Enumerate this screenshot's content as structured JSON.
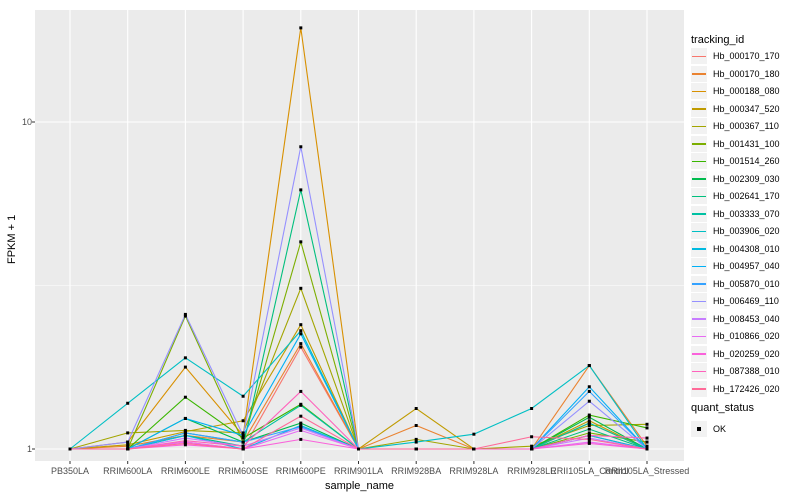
{
  "figure": {
    "background": "#FFFFFF",
    "panel_background": "#EBEBEB",
    "grid_color": "#FFFFFF",
    "tick_color": "#333333",
    "tick_label_color": "#4D4D4D",
    "axis_title_color": "#000000"
  },
  "axes": {
    "x_title": "sample_name",
    "y_title": "FPKM + 1",
    "y_ticks": [
      {
        "label": "10",
        "value": 10
      },
      {
        "label": "1",
        "value": 1
      }
    ]
  },
  "legend": {
    "tracking_title": "tracking_id",
    "quant_title": "quant_status",
    "quant_ok_label": "OK"
  },
  "chart_data": {
    "type": "line",
    "title": "",
    "xlabel": "sample_name",
    "ylabel": "FPKM + 1",
    "y_scale": "log10",
    "ylim": [
      0.92,
      22
    ],
    "y_major_gridlines": [
      1,
      10
    ],
    "y_minor_gridlines": [
      3.1623
    ],
    "grid": true,
    "legend_position": "right",
    "point_marker": "small black filled square at every observation (quant_status = OK)",
    "categories": [
      "PB350LA",
      "RRIM600LA",
      "RRIM600LE",
      "RRIM600SE",
      "RRIM600PE",
      "RRIM901LA",
      "RRIM928BA",
      "RRIM928LA",
      "RRIM928LE",
      "RRII105LA_Control",
      "RRII105LA_Stressed"
    ],
    "series": [
      {
        "name": "Hb_000170_170",
        "color": "#F8766D",
        "values": [
          1.0,
          1.0,
          1.05,
          1.0,
          2.05,
          1.0,
          1.0,
          1.0,
          1.0,
          1.1,
          1.0
        ]
      },
      {
        "name": "Hb_000170_180",
        "color": "#EA8331",
        "values": [
          1.0,
          1.02,
          1.1,
          1.05,
          2.1,
          1.0,
          1.18,
          1.0,
          1.0,
          1.8,
          1.02
        ]
      },
      {
        "name": "Hb_000188_080",
        "color": "#D89000",
        "values": [
          1.0,
          1.05,
          1.78,
          1.1,
          19.4,
          1.0,
          1.0,
          1.0,
          1.0,
          1.2,
          1.0
        ]
      },
      {
        "name": "Hb_000347_520",
        "color": "#C09B00",
        "values": [
          1.0,
          1.03,
          1.13,
          1.22,
          2.4,
          1.0,
          1.33,
          1.0,
          1.0,
          1.22,
          1.0
        ]
      },
      {
        "name": "Hb_000367_110",
        "color": "#A3A500",
        "values": [
          1.0,
          1.12,
          1.14,
          1.12,
          3.1,
          1.0,
          1.07,
          1.0,
          1.02,
          1.18,
          1.19
        ]
      },
      {
        "name": "Hb_001431_100",
        "color": "#7CAE00",
        "values": [
          1.0,
          1.0,
          2.55,
          1.05,
          4.3,
          1.0,
          1.0,
          1.0,
          1.0,
          1.12,
          1.05
        ]
      },
      {
        "name": "Hb_001514_260",
        "color": "#39B600",
        "values": [
          1.0,
          1.0,
          1.44,
          1.08,
          1.37,
          1.0,
          1.0,
          1.0,
          1.0,
          1.27,
          1.16
        ]
      },
      {
        "name": "Hb_002309_030",
        "color": "#00BB4E",
        "values": [
          1.0,
          1.0,
          1.24,
          1.05,
          1.2,
          1.0,
          1.0,
          1.0,
          1.0,
          1.25,
          1.0
        ]
      },
      {
        "name": "Hb_002641_170",
        "color": "#00BF7D",
        "values": [
          1.0,
          1.0,
          1.1,
          1.02,
          6.2,
          1.0,
          1.0,
          1.0,
          1.0,
          1.15,
          1.0
        ]
      },
      {
        "name": "Hb_003333_070",
        "color": "#00C1A3",
        "values": [
          1.0,
          1.0,
          1.12,
          1.05,
          1.36,
          1.0,
          1.0,
          1.0,
          1.0,
          1.2,
          1.0
        ]
      },
      {
        "name": "Hb_003906_020",
        "color": "#00BFC4",
        "values": [
          1.0,
          1.38,
          1.9,
          1.45,
          2.3,
          1.0,
          1.05,
          1.11,
          1.33,
          1.8,
          1.0
        ]
      },
      {
        "name": "Hb_004308_010",
        "color": "#00BAE0",
        "values": [
          1.0,
          1.0,
          1.1,
          1.0,
          1.18,
          1.0,
          1.0,
          1.0,
          1.0,
          1.1,
          1.0
        ]
      },
      {
        "name": "Hb_004957_040",
        "color": "#00B0F6",
        "values": [
          1.0,
          1.0,
          1.24,
          1.1,
          2.25,
          1.0,
          1.0,
          1.0,
          1.0,
          1.55,
          1.0
        ]
      },
      {
        "name": "Hb_005870_010",
        "color": "#35A2FF",
        "values": [
          1.0,
          1.0,
          1.12,
          1.05,
          1.17,
          1.0,
          1.0,
          1.0,
          1.0,
          1.5,
          1.0
        ]
      },
      {
        "name": "Hb_006469_110",
        "color": "#9590FF",
        "values": [
          1.0,
          1.05,
          2.58,
          1.1,
          8.4,
          1.0,
          1.0,
          1.0,
          1.0,
          1.4,
          1.0
        ]
      },
      {
        "name": "Hb_008453_040",
        "color": "#C77CFF",
        "values": [
          1.0,
          1.0,
          1.08,
          1.02,
          1.16,
          1.0,
          1.0,
          1.0,
          1.0,
          1.08,
          1.0
        ]
      },
      {
        "name": "Hb_010866_020",
        "color": "#E76BF3",
        "values": [
          1.0,
          1.0,
          1.05,
          1.0,
          1.14,
          1.0,
          1.0,
          1.0,
          1.0,
          1.05,
          1.0
        ]
      },
      {
        "name": "Hb_020259_020",
        "color": "#FA62DB",
        "values": [
          1.0,
          1.0,
          1.03,
          1.0,
          1.07,
          1.0,
          1.0,
          1.0,
          1.0,
          1.04,
          1.0
        ]
      },
      {
        "name": "Hb_087388_010",
        "color": "#FF62BC",
        "values": [
          1.0,
          1.0,
          1.06,
          1.02,
          1.5,
          1.0,
          1.0,
          1.0,
          1.0,
          1.1,
          1.08
        ]
      },
      {
        "name": "Hb_172426_020",
        "color": "#FF6A98",
        "values": [
          1.0,
          1.0,
          1.04,
          1.0,
          1.26,
          1.0,
          1.0,
          1.0,
          1.09,
          1.07,
          1.0
        ]
      }
    ]
  }
}
